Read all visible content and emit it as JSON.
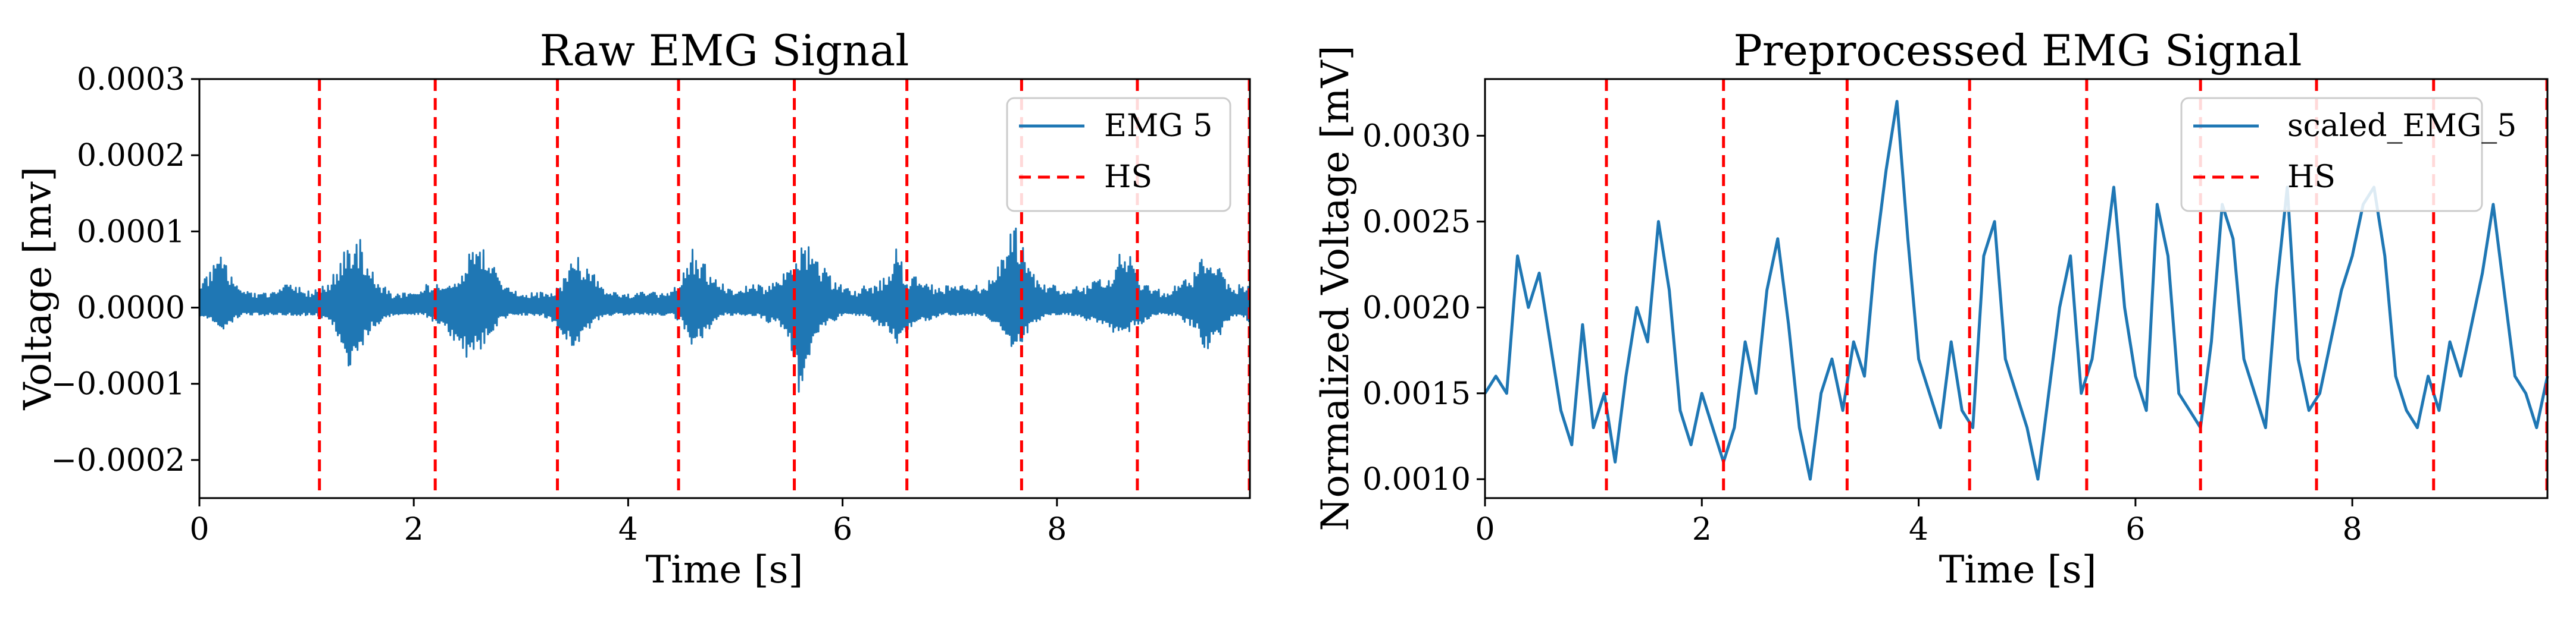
{
  "chart_data": [
    {
      "type": "line",
      "title": "Raw EMG Signal",
      "xlabel": "Time [s]",
      "ylabel": "Voltage [mv]",
      "xlim": [
        0,
        9.8
      ],
      "ylim": [
        -0.00025,
        0.0003
      ],
      "xticks": [
        0,
        2,
        4,
        6,
        8
      ],
      "xtick_labels": [
        "0",
        "2",
        "4",
        "6",
        "8"
      ],
      "yticks": [
        -0.0002,
        -0.0001,
        0.0,
        0.0001,
        0.0002,
        0.0003
      ],
      "ytick_labels": [
        "−0.0002",
        "−0.0001",
        "0.0000",
        "0.0001",
        "0.0002",
        "0.0003"
      ],
      "grid": false,
      "legend_position": "top-right",
      "series": [
        {
          "name": "EMG 5",
          "color": "#1f77b4",
          "style": "solid",
          "x": [
            0.0,
            0.1,
            0.2,
            0.3,
            0.4,
            0.5,
            0.6,
            0.7,
            0.8,
            0.9,
            1.0,
            1.1,
            1.2,
            1.3,
            1.4,
            1.5,
            1.6,
            1.7,
            1.8,
            1.9,
            2.0,
            2.1,
            2.2,
            2.3,
            2.4,
            2.5,
            2.6,
            2.7,
            2.8,
            2.9,
            3.0,
            3.1,
            3.2,
            3.3,
            3.4,
            3.5,
            3.6,
            3.7,
            3.8,
            3.9,
            4.0,
            4.1,
            4.2,
            4.3,
            4.4,
            4.5,
            4.6,
            4.7,
            4.8,
            4.9,
            5.0,
            5.1,
            5.2,
            5.3,
            5.4,
            5.5,
            5.6,
            5.7,
            5.8,
            5.9,
            6.0,
            6.1,
            6.2,
            6.3,
            6.4,
            6.5,
            6.6,
            6.7,
            6.8,
            6.9,
            7.0,
            7.1,
            7.2,
            7.3,
            7.4,
            7.5,
            7.6,
            7.7,
            7.8,
            7.9,
            8.0,
            8.1,
            8.2,
            8.3,
            8.4,
            8.5,
            8.6,
            8.7,
            8.8,
            8.9,
            9.0,
            9.1,
            9.2,
            9.3,
            9.4,
            9.5,
            9.6,
            9.7,
            9.8
          ],
          "envelope_max": [
            4e-05,
            5e-05,
            7e-05,
            4e-05,
            3e-05,
            2e-05,
            2e-05,
            2e-05,
            3e-05,
            3e-05,
            2e-05,
            3e-05,
            3e-05,
            6e-05,
            9e-05,
            9e-05,
            5e-05,
            3e-05,
            2e-05,
            2e-05,
            2e-05,
            3e-05,
            3e-05,
            3e-05,
            4e-05,
            7e-05,
            9e-05,
            7e-05,
            4e-05,
            3e-05,
            2e-05,
            2e-05,
            2e-05,
            2e-05,
            4e-05,
            7e-05,
            6e-05,
            4e-05,
            2e-05,
            2e-05,
            2e-05,
            2e-05,
            2e-05,
            2e-05,
            2e-05,
            4e-05,
            8e-05,
            6e-05,
            4e-05,
            3e-05,
            2e-05,
            3e-05,
            3e-05,
            3e-05,
            4e-05,
            5e-05,
            8e-05,
            9e-05,
            6e-05,
            4e-05,
            3e-05,
            2e-05,
            3e-05,
            3e-05,
            4e-05,
            8e-05,
            4e-05,
            4e-05,
            3e-05,
            3e-05,
            3e-05,
            3e-05,
            3e-05,
            3e-05,
            4e-05,
            7e-05,
            0.00011,
            8e-05,
            4e-05,
            3e-05,
            3e-05,
            2e-05,
            3e-05,
            3e-05,
            4e-05,
            4e-05,
            8e-05,
            7e-05,
            3e-05,
            3e-05,
            2e-05,
            3e-05,
            4e-05,
            5e-05,
            8e-05,
            6e-05,
            3e-05,
            3e-05,
            4e-05
          ],
          "envelope_min": [
            -1e-05,
            -2e-05,
            -3e-05,
            -2e-05,
            -1e-05,
            -1e-05,
            -1e-05,
            -1e-05,
            -1e-05,
            -1e-05,
            -1e-05,
            -1e-05,
            -2e-05,
            -4e-05,
            -9e-05,
            -6e-05,
            -3e-05,
            -2e-05,
            -1e-05,
            -1e-05,
            -1e-05,
            -1e-05,
            -2e-05,
            -3e-05,
            -5e-05,
            -7e-05,
            -6e-05,
            -4e-05,
            -2e-05,
            -1e-05,
            -1e-05,
            -1e-05,
            -1e-05,
            -2e-05,
            -4e-05,
            -6e-05,
            -4e-05,
            -2e-05,
            -1e-05,
            -1e-05,
            -1e-05,
            -1e-05,
            -1e-05,
            -1e-05,
            -1e-05,
            -2e-05,
            -5e-05,
            -4e-05,
            -2e-05,
            -1e-05,
            -1e-05,
            -1e-05,
            -1e-05,
            -2e-05,
            -2e-05,
            -4e-05,
            -0.00012,
            -6e-05,
            -3e-05,
            -2e-05,
            -1e-05,
            -1e-05,
            -1e-05,
            -2e-05,
            -3e-05,
            -5e-05,
            -3e-05,
            -2e-05,
            -2e-05,
            -1e-05,
            -1e-05,
            -1e-05,
            -1e-05,
            -1e-05,
            -2e-05,
            -3e-05,
            -6e-05,
            -4e-05,
            -2e-05,
            -1e-05,
            -1e-05,
            -1e-05,
            -1e-05,
            -2e-05,
            -2e-05,
            -3e-05,
            -4e-05,
            -3e-05,
            -2e-05,
            -1e-05,
            -1e-05,
            -1e-05,
            -2e-05,
            -3e-05,
            -6e-05,
            -4e-05,
            -2e-05,
            -1e-05,
            -2e-05
          ]
        },
        {
          "name": "HS",
          "color": "#ff0000",
          "style": "dashed",
          "vlines": [
            1.12,
            2.2,
            3.34,
            4.47,
            5.55,
            6.6,
            7.67,
            8.75,
            9.8
          ]
        }
      ]
    },
    {
      "type": "line",
      "title": "Preprocessed EMG Signal",
      "xlabel": "Time [s]",
      "ylabel": "Normalized Voltage [mV]",
      "xlim": [
        0,
        9.8
      ],
      "ylim": [
        0.00089,
        0.00333
      ],
      "xticks": [
        0,
        2,
        4,
        6,
        8
      ],
      "xtick_labels": [
        "0",
        "2",
        "4",
        "6",
        "8"
      ],
      "yticks": [
        0.001,
        0.0015,
        0.002,
        0.0025,
        0.003
      ],
      "ytick_labels": [
        "0.0010",
        "0.0015",
        "0.0020",
        "0.0025",
        "0.0030"
      ],
      "grid": false,
      "legend_position": "top-right",
      "series": [
        {
          "name": "scaled_EMG_5",
          "color": "#1f77b4",
          "style": "solid",
          "x": [
            0.0,
            0.1,
            0.2,
            0.3,
            0.4,
            0.5,
            0.6,
            0.7,
            0.8,
            0.9,
            1.0,
            1.1,
            1.2,
            1.3,
            1.4,
            1.5,
            1.6,
            1.7,
            1.8,
            1.9,
            2.0,
            2.1,
            2.2,
            2.3,
            2.4,
            2.5,
            2.6,
            2.7,
            2.8,
            2.9,
            3.0,
            3.1,
            3.2,
            3.3,
            3.4,
            3.5,
            3.6,
            3.7,
            3.8,
            3.9,
            4.0,
            4.1,
            4.2,
            4.3,
            4.4,
            4.5,
            4.6,
            4.7,
            4.8,
            4.9,
            5.0,
            5.1,
            5.2,
            5.3,
            5.4,
            5.5,
            5.6,
            5.7,
            5.8,
            5.9,
            6.0,
            6.1,
            6.2,
            6.3,
            6.4,
            6.5,
            6.6,
            6.7,
            6.8,
            6.9,
            7.0,
            7.1,
            7.2,
            7.3,
            7.4,
            7.5,
            7.6,
            7.7,
            7.8,
            7.9,
            8.0,
            8.1,
            8.2,
            8.3,
            8.4,
            8.5,
            8.6,
            8.7,
            8.8,
            8.9,
            9.0,
            9.1,
            9.2,
            9.3,
            9.4,
            9.5,
            9.6,
            9.7,
            9.8
          ],
          "y": [
            0.0015,
            0.0016,
            0.0015,
            0.0023,
            0.002,
            0.0022,
            0.0018,
            0.0014,
            0.0012,
            0.0019,
            0.0013,
            0.0015,
            0.0011,
            0.0016,
            0.002,
            0.0018,
            0.0025,
            0.0021,
            0.0014,
            0.0012,
            0.0015,
            0.0013,
            0.0011,
            0.0013,
            0.0018,
            0.0015,
            0.0021,
            0.0024,
            0.0019,
            0.0013,
            0.001,
            0.0015,
            0.0017,
            0.0014,
            0.0018,
            0.0016,
            0.0023,
            0.0028,
            0.0032,
            0.0024,
            0.0017,
            0.0015,
            0.0013,
            0.0018,
            0.0014,
            0.0013,
            0.0023,
            0.0025,
            0.0017,
            0.0015,
            0.0013,
            0.001,
            0.0015,
            0.002,
            0.0023,
            0.0015,
            0.0017,
            0.0022,
            0.0027,
            0.002,
            0.0016,
            0.0014,
            0.0026,
            0.0023,
            0.0015,
            0.0014,
            0.0013,
            0.0018,
            0.0026,
            0.0024,
            0.0017,
            0.0015,
            0.0013,
            0.0021,
            0.0027,
            0.0017,
            0.0014,
            0.0015,
            0.0018,
            0.0021,
            0.0023,
            0.0026,
            0.0027,
            0.0023,
            0.0016,
            0.0014,
            0.0013,
            0.0016,
            0.0014,
            0.0018,
            0.0016,
            0.0019,
            0.0022,
            0.0026,
            0.0021,
            0.0016,
            0.0015,
            0.0013,
            0.0016
          ]
        },
        {
          "name": "HS",
          "color": "#ff0000",
          "style": "dashed",
          "vlines": [
            1.12,
            2.2,
            3.34,
            4.47,
            5.55,
            6.6,
            7.67,
            8.75,
            9.8
          ]
        }
      ]
    }
  ]
}
